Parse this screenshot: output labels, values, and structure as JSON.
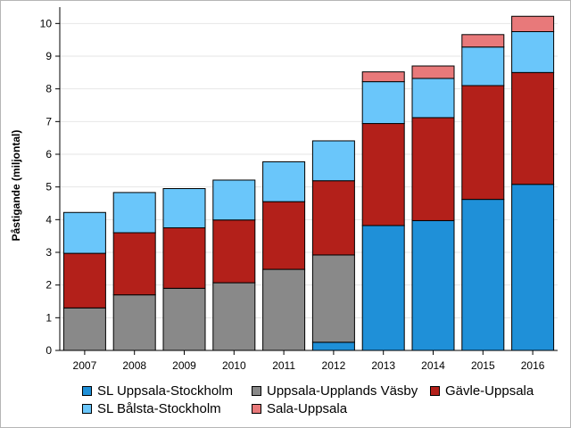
{
  "chart_data": {
    "type": "bar",
    "stacked": true,
    "title": "",
    "xlabel": "",
    "ylabel": "Påstigande (miljontal)",
    "ylim": [
      0,
      10.5
    ],
    "yticks": [
      0,
      1,
      2,
      3,
      4,
      5,
      6,
      7,
      8,
      9,
      10
    ],
    "grid": true,
    "legend_position": "bottom",
    "categories": [
      "2007",
      "2008",
      "2009",
      "2010",
      "2011",
      "2012",
      "2013",
      "2014",
      "2015",
      "2016"
    ],
    "series": [
      {
        "name": "SL Uppsala-Stockholm",
        "color": "#1f90d8",
        "values": [
          0,
          0,
          0,
          0,
          0,
          0.25,
          3.82,
          3.97,
          4.62,
          5.08
        ]
      },
      {
        "name": "Uppsala-Upplands Väsby",
        "color": "#898989",
        "values": [
          1.3,
          1.7,
          1.9,
          2.07,
          2.48,
          2.67,
          0,
          0,
          0,
          0
        ]
      },
      {
        "name": "Gävle-Uppsala",
        "color": "#b3201a",
        "values": [
          1.67,
          1.9,
          1.85,
          1.92,
          2.07,
          2.27,
          3.12,
          3.15,
          3.48,
          3.42
        ]
      },
      {
        "name": "SL Bålsta-Stockholm",
        "color": "#6ac6fa",
        "values": [
          1.25,
          1.23,
          1.2,
          1.22,
          1.22,
          1.22,
          1.28,
          1.2,
          1.18,
          1.25
        ]
      },
      {
        "name": "Sala-Uppsala",
        "color": "#e8797a",
        "values": [
          0,
          0,
          0,
          0,
          0,
          0,
          0.3,
          0.38,
          0.38,
          0.47
        ]
      }
    ]
  }
}
